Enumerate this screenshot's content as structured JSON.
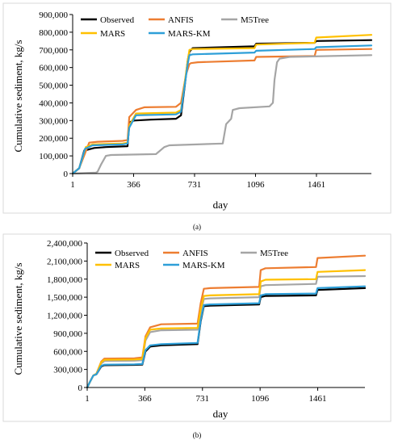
{
  "chart_data": [
    {
      "type": "line",
      "panel_label": "(a)",
      "xlabel": "day",
      "ylabel": "Cumulative sediment, kg/s",
      "xlim": [
        1,
        1790
      ],
      "ylim": [
        0,
        900000
      ],
      "xticks": [
        1,
        366,
        731,
        1096,
        1461
      ],
      "xtick_labels": [
        "1",
        "366",
        "731",
        "1096",
        "1461"
      ],
      "yticks": [
        0,
        100000,
        200000,
        300000,
        400000,
        500000,
        600000,
        700000,
        800000,
        900000
      ],
      "ytick_labels": [
        "0",
        "100,000",
        "200,000",
        "300,000",
        "400,000",
        "500,000",
        "600,000",
        "700,000",
        "800,000",
        "900,000"
      ],
      "grid": "none",
      "legend_position": "top-left",
      "legend_columns": 3,
      "series": [
        {
          "name": "Observed",
          "color": "#000000",
          "x": [
            1,
            40,
            70,
            130,
            200,
            330,
            335,
            340,
            370,
            470,
            620,
            650,
            670,
            690,
            700,
            720,
            1090,
            1100,
            1450,
            1460,
            1790
          ],
          "y": [
            0,
            30000,
            130000,
            145000,
            150000,
            155000,
            220000,
            290000,
            300000,
            305000,
            310000,
            330000,
            480000,
            640000,
            690000,
            710000,
            720000,
            735000,
            740000,
            750000,
            755000
          ]
        },
        {
          "name": "ANFIS",
          "color": "#ED7D31",
          "x": [
            1,
            40,
            100,
            150,
            300,
            330,
            340,
            380,
            430,
            620,
            650,
            680,
            700,
            710,
            750,
            1090,
            1100,
            1450,
            1460,
            1790
          ],
          "y": [
            0,
            30000,
            175000,
            180000,
            185000,
            190000,
            320000,
            360000,
            375000,
            378000,
            400000,
            560000,
            620000,
            625000,
            630000,
            640000,
            660000,
            665000,
            700000,
            705000
          ]
        },
        {
          "name": "M5Tree",
          "color": "#A5A5A5",
          "x": [
            1,
            140,
            150,
            170,
            200,
            230,
            500,
            550,
            580,
            900,
            920,
            950,
            960,
            1000,
            1180,
            1200,
            1210,
            1225,
            1240,
            1300,
            1790
          ],
          "y": [
            0,
            5000,
            10000,
            50000,
            100000,
            105000,
            110000,
            150000,
            160000,
            170000,
            280000,
            310000,
            360000,
            370000,
            380000,
            400000,
            530000,
            630000,
            650000,
            660000,
            670000
          ]
        },
        {
          "name": "MARS",
          "color": "#FFC000",
          "x": [
            1,
            40,
            80,
            120,
            300,
            330,
            340,
            380,
            620,
            650,
            690,
            700,
            720,
            1090,
            1100,
            1450,
            1460,
            1790
          ],
          "y": [
            0,
            30000,
            150000,
            165000,
            170000,
            175000,
            270000,
            340000,
            345000,
            360000,
            640000,
            700000,
            705000,
            710000,
            730000,
            740000,
            770000,
            785000
          ]
        },
        {
          "name": "MARS-KM",
          "color": "#2E9FD8",
          "x": [
            1,
            40,
            75,
            120,
            300,
            330,
            340,
            380,
            620,
            650,
            690,
            700,
            720,
            1090,
            1100,
            1450,
            1460,
            1790
          ],
          "y": [
            0,
            30000,
            140000,
            160000,
            165000,
            170000,
            260000,
            330000,
            335000,
            350000,
            620000,
            670000,
            675000,
            685000,
            695000,
            705000,
            715000,
            725000
          ]
        }
      ]
    },
    {
      "type": "line",
      "panel_label": "(b)",
      "xlabel": "day",
      "ylabel": "Cumulative sediment, kg/s",
      "xlim": [
        1,
        1760
      ],
      "ylim": [
        0,
        2400000
      ],
      "xticks": [
        1,
        366,
        731,
        1096,
        1461
      ],
      "xtick_labels": [
        "1",
        "366",
        "731",
        "1096",
        "1461"
      ],
      "yticks": [
        0,
        300000,
        600000,
        900000,
        1200000,
        1500000,
        1800000,
        2100000,
        2400000
      ],
      "ytick_labels": [
        "0",
        "300,000",
        "600,000",
        "900,000",
        "1,200,000",
        "1,500,000",
        "1,800,000",
        "2,100,000",
        "2,400,000"
      ],
      "grid": "none",
      "legend_position": "top-left",
      "legend_columns": 3,
      "series": [
        {
          "name": "Observed",
          "color": "#000000",
          "x": [
            1,
            20,
            40,
            60,
            90,
            110,
            300,
            350,
            370,
            400,
            470,
            700,
            720,
            740,
            780,
            1090,
            1100,
            1130,
            1450,
            1460,
            1760
          ],
          "y": [
            0,
            100000,
            200000,
            220000,
            350000,
            370000,
            375000,
            380000,
            600000,
            680000,
            700000,
            720000,
            1100000,
            1350000,
            1360000,
            1380000,
            1500000,
            1520000,
            1530000,
            1620000,
            1650000
          ]
        },
        {
          "name": "ANFIS",
          "color": "#ED7D31",
          "x": [
            1,
            20,
            40,
            60,
            90,
            110,
            300,
            350,
            370,
            400,
            470,
            700,
            720,
            740,
            780,
            1090,
            1100,
            1130,
            1450,
            1460,
            1760
          ],
          "y": [
            0,
            100000,
            200000,
            230000,
            430000,
            480000,
            485000,
            500000,
            850000,
            1000000,
            1050000,
            1060000,
            1400000,
            1640000,
            1650000,
            1670000,
            1950000,
            1980000,
            2000000,
            2150000,
            2190000
          ]
        },
        {
          "name": "M5Tree",
          "color": "#A5A5A5",
          "x": [
            1,
            20,
            40,
            60,
            90,
            110,
            300,
            350,
            370,
            400,
            470,
            700,
            720,
            740,
            780,
            1090,
            1100,
            1130,
            1450,
            1460,
            1760
          ],
          "y": [
            0,
            100000,
            200000,
            225000,
            400000,
            440000,
            445000,
            455000,
            780000,
            920000,
            950000,
            960000,
            1250000,
            1470000,
            1480000,
            1500000,
            1680000,
            1700000,
            1720000,
            1840000,
            1850000
          ]
        },
        {
          "name": "MARS",
          "color": "#FFC000",
          "x": [
            1,
            20,
            40,
            60,
            90,
            110,
            300,
            350,
            370,
            400,
            470,
            700,
            720,
            740,
            780,
            1090,
            1100,
            1130,
            1450,
            1460,
            1760
          ],
          "y": [
            0,
            100000,
            200000,
            228000,
            420000,
            460000,
            465000,
            475000,
            820000,
            960000,
            980000,
            990000,
            1300000,
            1520000,
            1530000,
            1550000,
            1760000,
            1790000,
            1800000,
            1920000,
            1950000
          ]
        },
        {
          "name": "MARS-KM",
          "color": "#2E9FD8",
          "x": [
            1,
            20,
            40,
            60,
            90,
            110,
            300,
            350,
            370,
            400,
            470,
            700,
            720,
            740,
            780,
            1090,
            1100,
            1130,
            1450,
            1460,
            1760
          ],
          "y": [
            0,
            100000,
            200000,
            220000,
            360000,
            380000,
            385000,
            390000,
            620000,
            700000,
            720000,
            740000,
            1120000,
            1370000,
            1380000,
            1400000,
            1530000,
            1550000,
            1560000,
            1650000,
            1680000
          ]
        }
      ]
    }
  ]
}
